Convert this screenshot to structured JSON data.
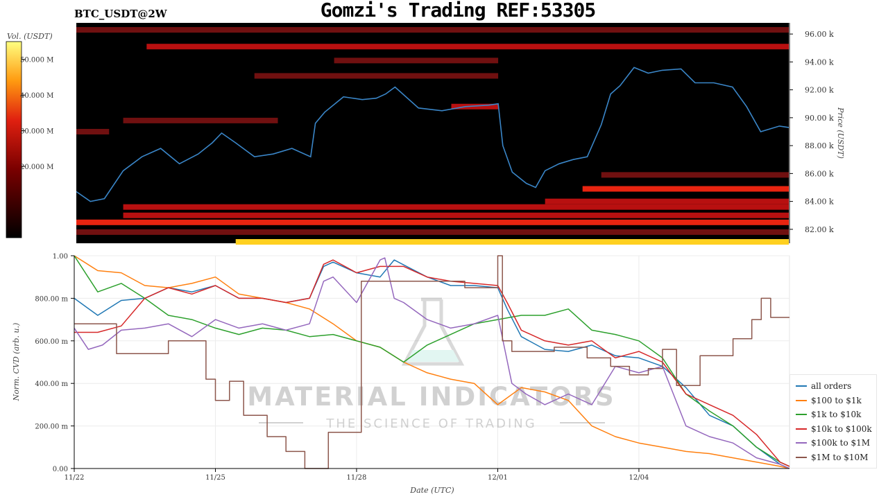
{
  "header": {
    "title": "Gomzi's Trading REF:53305",
    "pair": "BTC_USDT@2W"
  },
  "watermark": {
    "brand": "MATERIAL INDICATORS",
    "tagline": "THE SCIENCE OF TRADING"
  },
  "chart_data": [
    {
      "type": "heatmap",
      "colorbar": {
        "label": "Vol. (USDT)",
        "ticks": [
          "20.000 M",
          "30.000 M",
          "40.000 M",
          "50.000 M"
        ],
        "tick_values": [
          20,
          30,
          40,
          50
        ],
        "range": [
          0,
          55
        ]
      },
      "ylabel": "Price (USDT)",
      "ylim": [
        81000,
        96800
      ],
      "yticks": [
        "82.00 k",
        "84.00 k",
        "86.00 k",
        "88.00 k",
        "90.00 k",
        "92.00 k",
        "94.00 k",
        "96.00 k"
      ],
      "ytick_values": [
        82000,
        84000,
        86000,
        88000,
        90000,
        92000,
        94000,
        96000
      ],
      "colors": {
        "price_line": "#3a86c8",
        "heat_low": "#000000",
        "heat_mid": "#d01010",
        "heat_high": "#ffff40"
      },
      "price_series": {
        "x": [
          22.0,
          22.3,
          22.6,
          23.0,
          23.4,
          23.8,
          24.2,
          24.6,
          24.9,
          25.1,
          25.4,
          25.8,
          26.2,
          26.6,
          27.0,
          27.1,
          27.3,
          27.7,
          28.1,
          28.4,
          28.6,
          28.8,
          29.3,
          29.8,
          30.3,
          30.8,
          31.0,
          31.1,
          31.3,
          31.6,
          31.8,
          32.0,
          32.3,
          32.6,
          32.9,
          33.2,
          33.4,
          33.6,
          33.9,
          34.2,
          34.5,
          34.9,
          35.2,
          35.6,
          36.0,
          36.3,
          36.6,
          37.0,
          37.2
        ],
        "y": [
          84700,
          84000,
          84200,
          86200,
          87200,
          87800,
          86700,
          87400,
          88200,
          88900,
          88200,
          87200,
          87400,
          87800,
          87200,
          89600,
          90400,
          91500,
          91300,
          91400,
          91700,
          92200,
          90700,
          90500,
          90800,
          90900,
          91000,
          88000,
          86100,
          85300,
          85000,
          86200,
          86700,
          87000,
          87200,
          89500,
          91700,
          92300,
          93600,
          93200,
          93400,
          93500,
          92500,
          92500,
          92200,
          90800,
          89000,
          89400,
          89300
        ]
      },
      "heat_bands": [
        {
          "price": 96300,
          "x_start": 22.0,
          "x_end": 37.2,
          "intensity": 0.45
        },
        {
          "price": 95100,
          "x_start": 23.5,
          "x_end": 37.2,
          "intensity": 0.5
        },
        {
          "price": 94100,
          "x_start": 27.5,
          "x_end": 31.0,
          "intensity": 0.45
        },
        {
          "price": 93000,
          "x_start": 25.8,
          "x_end": 31.0,
          "intensity": 0.4
        },
        {
          "price": 90800,
          "x_start": 30.0,
          "x_end": 31.0,
          "intensity": 0.55
        },
        {
          "price": 89800,
          "x_start": 23.0,
          "x_end": 26.3,
          "intensity": 0.35
        },
        {
          "price": 89000,
          "x_start": 22.0,
          "x_end": 22.7,
          "intensity": 0.45
        },
        {
          "price": 85900,
          "x_start": 33.2,
          "x_end": 37.2,
          "intensity": 0.45
        },
        {
          "price": 84900,
          "x_start": 32.8,
          "x_end": 37.2,
          "intensity": 0.65
        },
        {
          "price": 84000,
          "x_start": 32.0,
          "x_end": 37.2,
          "intensity": 0.5
        },
        {
          "price": 83600,
          "x_start": 23.0,
          "x_end": 37.2,
          "intensity": 0.55
        },
        {
          "price": 83000,
          "x_start": 23.0,
          "x_end": 37.2,
          "intensity": 0.6
        },
        {
          "price": 82500,
          "x_start": 22.0,
          "x_end": 37.2,
          "intensity": 0.7
        },
        {
          "price": 81800,
          "x_start": 22.0,
          "x_end": 37.2,
          "intensity": 0.4
        },
        {
          "price": 81100,
          "x_start": 25.4,
          "x_end": 37.2,
          "intensity": 0.85
        }
      ]
    },
    {
      "type": "line",
      "xlabel": "Date (UTC)",
      "ylabel": "Norm. CVD (arb. u.)",
      "xlim": [
        22,
        37.2
      ],
      "ylim": [
        0,
        1
      ],
      "xticks": [
        "11/22",
        "11/25",
        "11/28",
        "12/01",
        "12/04"
      ],
      "xtick_values": [
        22,
        25,
        28,
        31,
        34
      ],
      "yticks": [
        "0.00",
        "200.00 m",
        "400.00 m",
        "600.00 m",
        "800.00 m",
        "1.00"
      ],
      "ytick_values": [
        0,
        0.2,
        0.4,
        0.6,
        0.8,
        1.0
      ],
      "grid": true,
      "legend_position": "bottom-right",
      "series": [
        {
          "name": "all orders",
          "color": "#1f77b4",
          "x": [
            22.0,
            22.5,
            23.0,
            23.5,
            24.0,
            24.5,
            25.0,
            25.5,
            26.0,
            26.5,
            27.0,
            27.3,
            27.5,
            28.0,
            28.5,
            28.8,
            29.5,
            30.0,
            30.5,
            31.0,
            31.2,
            31.5,
            32.0,
            32.5,
            33.0,
            33.5,
            34.0,
            34.5,
            35.0,
            35.5,
            36.0,
            36.5,
            37.0,
            37.2
          ],
          "y": [
            0.8,
            0.72,
            0.79,
            0.8,
            0.85,
            0.83,
            0.86,
            0.8,
            0.8,
            0.78,
            0.8,
            0.95,
            0.97,
            0.92,
            0.9,
            0.98,
            0.9,
            0.86,
            0.86,
            0.85,
            0.75,
            0.62,
            0.56,
            0.55,
            0.58,
            0.53,
            0.52,
            0.48,
            0.38,
            0.25,
            0.2,
            0.1,
            0.02,
            0.0
          ]
        },
        {
          "name": "$100 to $1k",
          "color": "#ff7f0e",
          "x": [
            22.0,
            22.5,
            23.0,
            23.5,
            24.0,
            24.5,
            25.0,
            25.5,
            26.0,
            26.5,
            27.0,
            27.5,
            28.0,
            28.5,
            29.0,
            29.5,
            30.0,
            30.5,
            31.0,
            31.5,
            32.0,
            32.5,
            33.0,
            33.5,
            34.0,
            34.5,
            35.0,
            35.5,
            36.0,
            36.5,
            37.0,
            37.2
          ],
          "y": [
            1.0,
            0.93,
            0.92,
            0.86,
            0.85,
            0.87,
            0.9,
            0.82,
            0.8,
            0.78,
            0.75,
            0.68,
            0.6,
            0.57,
            0.5,
            0.45,
            0.42,
            0.4,
            0.3,
            0.38,
            0.36,
            0.32,
            0.2,
            0.15,
            0.12,
            0.1,
            0.08,
            0.07,
            0.05,
            0.03,
            0.01,
            0.0
          ]
        },
        {
          "name": "$1k to $10k",
          "color": "#2ca02c",
          "x": [
            22.0,
            22.5,
            23.0,
            23.5,
            24.0,
            24.5,
            25.0,
            25.5,
            26.0,
            26.5,
            27.0,
            27.5,
            28.0,
            28.5,
            29.0,
            29.5,
            30.0,
            30.5,
            31.0,
            31.5,
            32.0,
            32.5,
            33.0,
            33.5,
            34.0,
            34.5,
            35.0,
            35.5,
            36.0,
            36.5,
            37.0,
            37.2
          ],
          "y": [
            1.0,
            0.83,
            0.87,
            0.8,
            0.72,
            0.7,
            0.66,
            0.63,
            0.66,
            0.65,
            0.62,
            0.63,
            0.6,
            0.57,
            0.5,
            0.58,
            0.63,
            0.68,
            0.7,
            0.72,
            0.72,
            0.75,
            0.65,
            0.63,
            0.6,
            0.52,
            0.35,
            0.27,
            0.2,
            0.1,
            0.03,
            0.01
          ]
        },
        {
          "name": "$10k to $100k",
          "color": "#d62728",
          "x": [
            22.0,
            22.5,
            23.0,
            23.5,
            24.0,
            24.5,
            25.0,
            25.5,
            26.0,
            26.5,
            27.0,
            27.3,
            27.5,
            28.0,
            28.5,
            29.0,
            29.5,
            30.0,
            30.5,
            31.0,
            31.2,
            31.5,
            32.0,
            32.5,
            33.0,
            33.5,
            34.0,
            34.5,
            35.0,
            35.5,
            36.0,
            36.5,
            37.0,
            37.2
          ],
          "y": [
            0.64,
            0.64,
            0.67,
            0.8,
            0.85,
            0.82,
            0.86,
            0.8,
            0.8,
            0.78,
            0.8,
            0.96,
            0.98,
            0.92,
            0.95,
            0.95,
            0.9,
            0.88,
            0.87,
            0.86,
            0.78,
            0.65,
            0.6,
            0.58,
            0.6,
            0.52,
            0.55,
            0.5,
            0.35,
            0.3,
            0.25,
            0.16,
            0.03,
            0.01
          ]
        },
        {
          "name": "$100k to $1M",
          "color": "#9467bd",
          "x": [
            22.0,
            22.3,
            22.6,
            23.0,
            23.5,
            24.0,
            24.5,
            25.0,
            25.5,
            26.0,
            26.5,
            27.0,
            27.3,
            27.5,
            28.0,
            28.5,
            28.6,
            28.8,
            29.0,
            29.5,
            30.0,
            30.5,
            31.0,
            31.3,
            31.6,
            32.0,
            32.5,
            33.0,
            33.5,
            34.0,
            34.5,
            35.0,
            35.5,
            36.0,
            36.5,
            37.0,
            37.2
          ],
          "y": [
            0.66,
            0.56,
            0.58,
            0.65,
            0.66,
            0.68,
            0.62,
            0.7,
            0.66,
            0.68,
            0.65,
            0.68,
            0.88,
            0.9,
            0.78,
            0.98,
            0.99,
            0.8,
            0.78,
            0.7,
            0.66,
            0.68,
            0.72,
            0.4,
            0.35,
            0.3,
            0.35,
            0.3,
            0.48,
            0.45,
            0.48,
            0.2,
            0.15,
            0.12,
            0.05,
            0.02,
            0.0
          ]
        },
        {
          "name": "$1M to $10M",
          "color": "#8c564b",
          "step": true,
          "x": [
            22.0,
            22.9,
            24.0,
            24.8,
            25.0,
            25.3,
            25.6,
            26.1,
            26.5,
            26.9,
            27.0,
            27.4,
            28.1,
            28.5,
            28.8,
            29.8,
            30.3,
            31.0,
            31.1,
            31.3,
            31.7,
            32.2,
            32.9,
            33.4,
            33.8,
            34.2,
            34.5,
            34.8,
            35.3,
            35.6,
            36.0,
            36.4,
            36.6,
            36.8,
            37.2
          ],
          "y": [
            0.68,
            0.54,
            0.6,
            0.42,
            0.32,
            0.41,
            0.25,
            0.15,
            0.08,
            0.0,
            0.0,
            0.17,
            0.88,
            0.88,
            0.88,
            0.88,
            0.85,
            1.0,
            0.6,
            0.55,
            0.55,
            0.57,
            0.52,
            0.48,
            0.44,
            0.47,
            0.56,
            0.39,
            0.53,
            0.53,
            0.61,
            0.7,
            0.8,
            0.71,
            0.71
          ]
        }
      ]
    }
  ]
}
